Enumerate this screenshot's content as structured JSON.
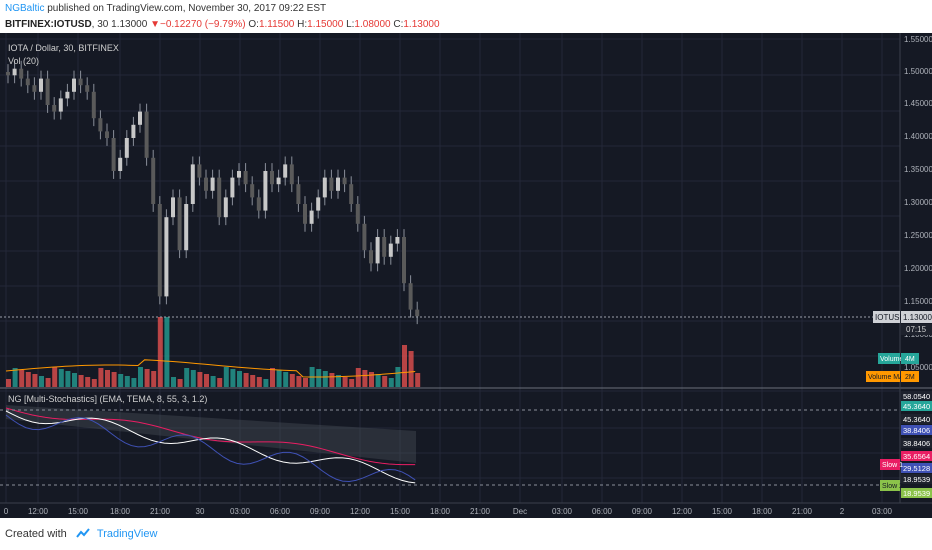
{
  "header": {
    "author": "NGBaltic",
    "published_text": "published on TradingView.com, November 30, 2017 09:22 EST"
  },
  "symbol_bar": {
    "symbol": "BITFINEX:IOTUSD",
    "interval": "30",
    "last": "1.13000",
    "change": "▼−0.12270 (−9.79%)",
    "o_label": "O:",
    "o_value": "1.11500",
    "h_label": "H:",
    "h_value": "1.15000",
    "l_label": "L:",
    "l_value": "1.08000",
    "c_label": "C:",
    "c_value": "1.13000"
  },
  "pane_main": {
    "title": "IOTA / Dollar, 30, BITFINEX",
    "vol_label": "Vol (20)",
    "price_ticks": [
      "1.55000",
      "1.50000",
      "1.45000",
      "1.40000",
      "1.35000",
      "1.30000",
      "1.25000",
      "1.20000",
      "1.15000",
      "1.10000",
      "1.05000"
    ],
    "current_symbol_label": "IOTUSD",
    "current_price_label": "1.13000",
    "countdown_label": "07:15",
    "volume_label": "Volume",
    "volume_value": "4M",
    "volume_ma_label": "Volume MA",
    "volume_ma_value": "2M"
  },
  "pane_ind": {
    "title": "NG [Multi-Stochastics] (EMA, TEMA, 8, 55, 3, 1.2)",
    "labels": [
      "58.0540",
      "45.3640",
      "45.3640",
      "38.8406",
      "38.8406",
      "35.6564",
      "29.5128",
      "18.9539",
      "18.9539"
    ],
    "slow_labels": [
      "Slow 1",
      "Slow 2"
    ]
  },
  "time_axis": [
    "0",
    "12:00",
    "15:00",
    "18:00",
    "21:00",
    "30",
    "03:00",
    "06:00",
    "09:00",
    "12:00",
    "15:00",
    "18:00",
    "21:00",
    "Dec",
    "03:00",
    "06:00",
    "09:00",
    "12:00",
    "15:00",
    "18:00",
    "21:00",
    "2",
    "03:00"
  ],
  "footer": {
    "created_with": "Created with",
    "brand": "TradingView"
  },
  "colors": {
    "background": "#151924",
    "grid": "#232838",
    "candle_body": "#c8c8c8",
    "candle_bear": "#5a5a5a",
    "volume_up": "#26a69a",
    "volume_down": "#ef5350",
    "volume_ma": "#ff9800",
    "stoch_1": "#e91e63",
    "stoch_2": "#ffffff",
    "stoch_3": "#3f51b5"
  }
}
